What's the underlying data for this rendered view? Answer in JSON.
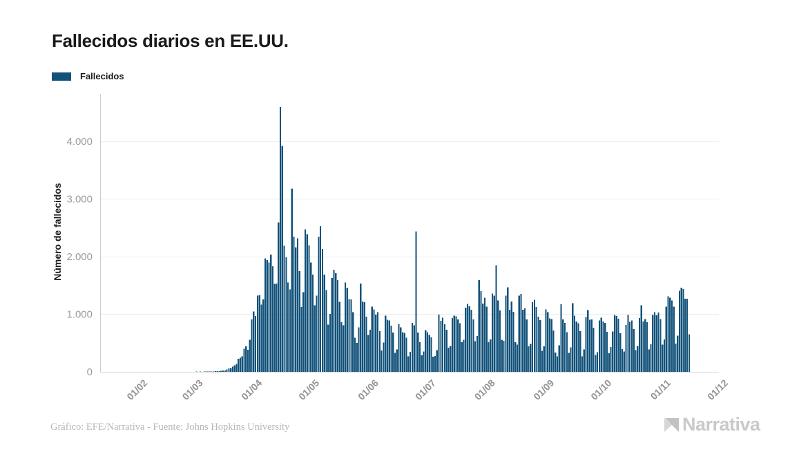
{
  "header": {
    "title": "Fallecidos diarios en EE.UU."
  },
  "legend": {
    "label": "Fallecidos"
  },
  "footer": {
    "credit": "Gráfico: EFE/Narrativa - Fuente: Johns Hopkins University",
    "brand": "Narrativa"
  },
  "colors": {
    "bar": "#12527a",
    "grid": "#ebebeb",
    "axis_line_y": "#cccccc",
    "axis_line_x": "#d9d9d9",
    "tick_text": "#9c9c9c",
    "title_text": "#1a1a1a",
    "credit_text": "#b7b7b7",
    "brand_text": "#c9c9c9"
  },
  "chart_data": {
    "type": "bar",
    "title": "Fallecidos diarios en EE.UU.",
    "series_name": "Fallecidos",
    "xlabel": "",
    "ylabel": "Número de fallecidos",
    "x_unit": "day",
    "x_start_date": "2020-01-22",
    "x_end_date": "2020-11-15",
    "x_axis_domain": [
      "2020-01-12",
      "2020-12-01"
    ],
    "x_tick_dates": [
      "2020-02-01",
      "2020-03-01",
      "2020-04-01",
      "2020-05-01",
      "2020-06-01",
      "2020-07-01",
      "2020-08-01",
      "2020-09-01",
      "2020-10-01",
      "2020-11-01",
      "2020-12-01"
    ],
    "x_tick_labels": [
      "01/02",
      "01/03",
      "01/04",
      "01/05",
      "01/06",
      "01/07",
      "01/08",
      "01/09",
      "01/10",
      "01/11",
      "01/12"
    ],
    "y_tick_values": [
      0,
      1000,
      2000,
      3000,
      4000
    ],
    "y_tick_labels": [
      "0",
      "1.000",
      "2.000",
      "3.000",
      "4.000"
    ],
    "ylim": [
      0,
      4826
    ],
    "grid": "horizontal",
    "legend_position": "top-left",
    "values": [
      0,
      0,
      0,
      0,
      0,
      0,
      0,
      0,
      0,
      0,
      0,
      0,
      0,
      0,
      0,
      0,
      0,
      0,
      0,
      0,
      0,
      0,
      0,
      0,
      0,
      0,
      0,
      0,
      0,
      0,
      0,
      0,
      0,
      0,
      0,
      0,
      0,
      0,
      1,
      1,
      4,
      2,
      4,
      3,
      4,
      4,
      5,
      4,
      6,
      8,
      10,
      11,
      13,
      18,
      23,
      26,
      42,
      57,
      68,
      92,
      112,
      140,
      225,
      247,
      268,
      400,
      445,
      386,
      558,
      912,
      1049,
      968,
      1321,
      1331,
      1165,
      1255,
      1970,
      1940,
      1900,
      2035,
      1830,
      1528,
      1535,
      2590,
      4600,
      3920,
      2190,
      1990,
      1550,
      1433,
      3179,
      2350,
      2160,
      2320,
      1750,
      1126,
      1384,
      2470,
      2390,
      2200,
      1900,
      1691,
      1154,
      1324,
      2350,
      2528,
      2129,
      1687,
      1422,
      820,
      1008,
      1630,
      1772,
      1715,
      1595,
      1218,
      865,
      808,
      1552,
      1461,
      1263,
      1260,
      1035,
      592,
      505,
      774,
      1535,
      1223,
      1212,
      960,
      638,
      730,
      1134,
      1083,
      995,
      1036,
      709,
      373,
      510,
      979,
      906,
      891,
      802,
      683,
      330,
      389,
      825,
      773,
      690,
      679,
      594,
      267,
      350,
      850,
      808,
      2437,
      680,
      512,
      289,
      356,
      724,
      688,
      643,
      596,
      263,
      273,
      376,
      993,
      884,
      941,
      829,
      730,
      420,
      450,
      935,
      976,
      963,
      908,
      843,
      516,
      556,
      1113,
      1178,
      1135,
      1076,
      909,
      533,
      625,
      1592,
      1403,
      1185,
      1290,
      1134,
      514,
      565,
      1362,
      1324,
      1848,
      1242,
      1064,
      555,
      540,
      1324,
      1470,
      1076,
      1222,
      1041,
      516,
      476,
      1324,
      1356,
      1076,
      1101,
      910,
      446,
      486,
      1212,
      1250,
      1126,
      957,
      901,
      363,
      444,
      1086,
      1034,
      930,
      915,
      721,
      338,
      267,
      460,
      1176,
      912,
      851,
      690,
      327,
      426,
      1190,
      979,
      872,
      843,
      704,
      269,
      390,
      951,
      1069,
      906,
      910,
      764,
      296,
      344,
      891,
      942,
      875,
      851,
      694,
      326,
      429,
      703,
      990,
      969,
      925,
      669,
      393,
      353,
      817,
      989,
      868,
      893,
      742,
      379,
      449,
      936,
      1158,
      875,
      918,
      861,
      390,
      477,
      991,
      1038,
      984,
      1031,
      917,
      474,
      560,
      1130,
      1310,
      1290,
      1240,
      1130,
      490,
      630,
      1410,
      1460,
      1440,
      1270,
      1270,
      650
    ]
  }
}
